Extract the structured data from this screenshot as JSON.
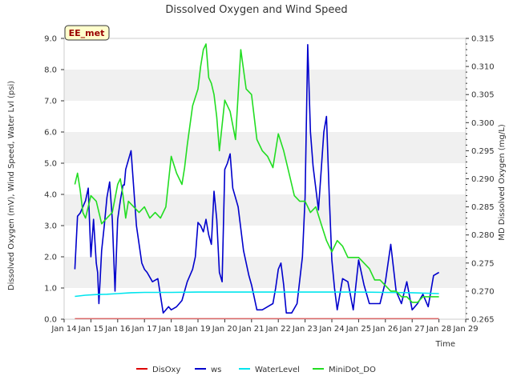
{
  "chart_data": {
    "type": "line",
    "title": "Dissolved Oxygen and Wind Speed",
    "xlabel": "Time",
    "ylabel_left": "Dissolved Oxygen (mV), Wind Speed, Water Lvl (psi)",
    "ylabel_right": "MD Dissolved Oxygen (mg/L)",
    "station_label": "EE_met",
    "xlim": [
      14,
      29
    ],
    "ylim_left": [
      0,
      9
    ],
    "ylim_right": [
      0.265,
      0.315
    ],
    "x_ticks": [
      14,
      15,
      16,
      17,
      18,
      19,
      20,
      21,
      22,
      23,
      24,
      25,
      26,
      27,
      28,
      29
    ],
    "x_tick_labels": [
      "Jan 14",
      "Jan 15",
      "Jan 16",
      "Jan 17",
      "Jan 18",
      "Jan 19",
      "Jan 20",
      "Jan 21",
      "Jan 22",
      "Jan 23",
      "Jan 24",
      "Jan 25",
      "Jan 26",
      "Jan 27",
      "Jan 28",
      "Jan 29"
    ],
    "y_left_ticks": [
      0,
      1,
      2,
      3,
      4,
      5,
      6,
      7,
      8,
      9
    ],
    "y_left_tick_labels": [
      "0.0",
      "1.0",
      "2.0",
      "3.0",
      "4.0",
      "5.0",
      "6.0",
      "7.0",
      "8.0",
      "9.0"
    ],
    "y_right_ticks": [
      0.265,
      0.27,
      0.275,
      0.28,
      0.285,
      0.29,
      0.295,
      0.3,
      0.305,
      0.31,
      0.315
    ],
    "y_right_tick_labels": [
      "0.265",
      "0.270",
      "0.275",
      "0.280",
      "0.285",
      "0.290",
      "0.295",
      "0.300",
      "0.305",
      "0.310",
      "0.315"
    ],
    "grid": "horizontal bands",
    "legend": "bottom",
    "series": [
      {
        "name": "DisOxy",
        "color": "#dd0000",
        "axis": "left",
        "x": [
          14.4,
          28.0
        ],
        "y": [
          0.01,
          0.01
        ]
      },
      {
        "name": "ws",
        "color": "#0000cc",
        "axis": "left",
        "x": [
          14.4,
          14.5,
          14.6,
          14.8,
          14.9,
          15.0,
          15.1,
          15.2,
          15.25,
          15.3,
          15.4,
          15.5,
          15.6,
          15.7,
          15.8,
          15.9,
          16.0,
          16.1,
          16.2,
          16.25,
          16.3,
          16.5,
          16.7,
          16.9,
          17.0,
          17.1,
          17.3,
          17.5,
          17.7,
          17.9,
          18.0,
          18.2,
          18.4,
          18.6,
          18.8,
          18.9,
          19.0,
          19.1,
          19.2,
          19.3,
          19.4,
          19.5,
          19.6,
          19.7,
          19.8,
          19.9,
          20.0,
          20.1,
          20.2,
          20.3,
          20.5,
          20.7,
          20.9,
          21.0,
          21.2,
          21.4,
          21.6,
          21.8,
          21.9,
          22.0,
          22.1,
          22.2,
          22.3,
          22.5,
          22.7,
          22.9,
          23.0,
          23.1,
          23.2,
          23.3,
          23.5,
          23.7,
          23.8,
          23.9,
          24.0,
          24.1,
          24.2,
          24.4,
          24.6,
          24.8,
          25.0,
          25.2,
          25.4,
          25.6,
          25.8,
          26.0,
          26.2,
          26.4,
          26.6,
          26.8,
          27.0,
          27.2,
          27.4,
          27.6,
          27.8,
          28.0
        ],
        "y": [
          1.6,
          3.3,
          3.4,
          3.8,
          4.2,
          2.0,
          3.2,
          1.8,
          1.5,
          0.5,
          2.2,
          3.0,
          3.9,
          4.4,
          3.2,
          0.9,
          3.2,
          3.8,
          4.3,
          4.3,
          4.8,
          5.4,
          3.0,
          1.8,
          1.6,
          1.5,
          1.2,
          1.3,
          0.2,
          0.4,
          0.3,
          0.4,
          0.6,
          1.2,
          1.6,
          2.0,
          3.1,
          3.0,
          2.8,
          3.2,
          2.7,
          2.4,
          4.1,
          3.2,
          1.5,
          1.2,
          4.8,
          5.0,
          5.3,
          4.2,
          3.6,
          2.2,
          1.4,
          1.1,
          0.3,
          0.3,
          0.4,
          0.5,
          1.0,
          1.6,
          1.8,
          1.1,
          0.2,
          0.2,
          0.5,
          2.0,
          3.9,
          8.8,
          6.0,
          4.9,
          3.5,
          6.0,
          6.5,
          4.0,
          1.9,
          1.0,
          0.3,
          1.3,
          1.2,
          0.3,
          1.9,
          1.1,
          0.5,
          0.5,
          0.5,
          1.2,
          2.4,
          0.9,
          0.5,
          1.2,
          0.3,
          0.5,
          0.8,
          0.4,
          1.4,
          1.5
        ]
      },
      {
        "name": "WaterLevel",
        "color": "#00e5ee",
        "axis": "left",
        "x": [
          14.4,
          14.8,
          15.2,
          15.6,
          16.0,
          16.5,
          17.0,
          17.5,
          18.0,
          19.0,
          20.0,
          21.0,
          22.0,
          23.0,
          24.0,
          25.0,
          26.0,
          27.0,
          28.0
        ],
        "y": [
          0.73,
          0.77,
          0.79,
          0.8,
          0.82,
          0.85,
          0.86,
          0.86,
          0.86,
          0.87,
          0.87,
          0.87,
          0.87,
          0.87,
          0.87,
          0.87,
          0.86,
          0.85,
          0.82
        ]
      },
      {
        "name": "MiniDot_DO",
        "color": "#22dd22",
        "axis": "right",
        "x": [
          14.4,
          14.5,
          14.6,
          14.7,
          14.8,
          15.0,
          15.2,
          15.4,
          15.6,
          15.8,
          16.0,
          16.1,
          16.2,
          16.3,
          16.4,
          16.6,
          16.8,
          17.0,
          17.2,
          17.4,
          17.6,
          17.8,
          18.0,
          18.2,
          18.4,
          18.5,
          18.6,
          18.8,
          19.0,
          19.1,
          19.2,
          19.3,
          19.4,
          19.5,
          19.6,
          19.7,
          19.8,
          20.0,
          20.2,
          20.4,
          20.6,
          20.8,
          21.0,
          21.2,
          21.4,
          21.6,
          21.8,
          22.0,
          22.2,
          22.4,
          22.6,
          22.8,
          23.0,
          23.2,
          23.4,
          23.6,
          23.8,
          24.0,
          24.2,
          24.4,
          24.6,
          24.8,
          25.0,
          25.2,
          25.4,
          25.6,
          25.8,
          26.0,
          26.2,
          26.4,
          26.6,
          26.8,
          27.0,
          27.2,
          27.4,
          27.6,
          27.8,
          28.0
        ],
        "y": [
          0.289,
          0.291,
          0.288,
          0.284,
          0.283,
          0.287,
          0.286,
          0.282,
          0.283,
          0.284,
          0.289,
          0.29,
          0.287,
          0.283,
          0.286,
          0.285,
          0.284,
          0.285,
          0.283,
          0.284,
          0.283,
          0.285,
          0.294,
          0.291,
          0.289,
          0.292,
          0.296,
          0.303,
          0.306,
          0.31,
          0.313,
          0.314,
          0.308,
          0.307,
          0.305,
          0.301,
          0.295,
          0.304,
          0.302,
          0.297,
          0.313,
          0.306,
          0.305,
          0.297,
          0.295,
          0.294,
          0.292,
          0.298,
          0.295,
          0.291,
          0.287,
          0.286,
          0.286,
          0.284,
          0.285,
          0.282,
          0.279,
          0.277,
          0.279,
          0.278,
          0.276,
          0.276,
          0.276,
          0.275,
          0.274,
          0.272,
          0.272,
          0.271,
          0.27,
          0.27,
          0.269,
          0.269,
          0.268,
          0.268,
          0.269,
          0.269,
          0.269,
          0.269
        ]
      }
    ]
  }
}
